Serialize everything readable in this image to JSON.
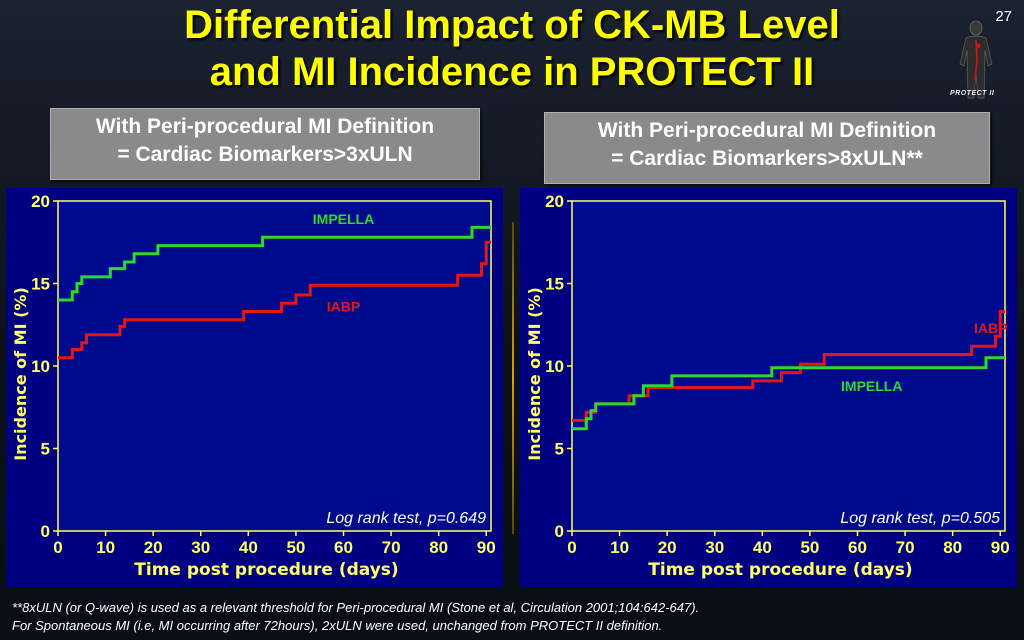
{
  "slide": {
    "title_line1": "Differential Impact of CK-MB Level",
    "title_line2": "and MI Incidence in PROTECT II",
    "slide_number": "27",
    "logo_text": "PROTECT II"
  },
  "boxes": [
    {
      "line1": "With Peri-procedural MI Definition",
      "line2": "= Cardiac Biomarkers>3xULN"
    },
    {
      "line1": "With Peri-procedural MI Definition",
      "line2": "= Cardiac Biomarkers>8xULN**"
    }
  ],
  "footnote": {
    "line1": "**8xULN  (or Q-wave) is used as a relevant threshold for Peri-procedural MI (Stone et al, Circulation 2001;104:642-647).",
    "line2": "For Spontaneous MI (i.e, MI occurring after 72hours), 2xULN were used, unchanged from PROTECT II definition."
  },
  "colors": {
    "panel_bg": "#000080",
    "plot_bg": "#000a8c",
    "axis_text": "#ffff66",
    "impella": "#2ed82e",
    "iabp": "#e01818",
    "title": "#ffff00"
  },
  "chart_data": [
    {
      "type": "line",
      "step": true,
      "xlabel": "Time post procedure (days)",
      "ylabel": "Incidence of MI (%)",
      "xlim": [
        0,
        91
      ],
      "ylim": [
        0,
        20
      ],
      "x_ticks": [
        0,
        10,
        20,
        30,
        40,
        50,
        60,
        70,
        80,
        90
      ],
      "y_ticks": [
        0,
        5,
        10,
        15,
        20
      ],
      "grid": false,
      "annotation": "Log rank test, p=0.649",
      "series": [
        {
          "name": "IMPELLA",
          "color": "#2ed82e",
          "label_at": [
            60,
            18.6
          ],
          "points": [
            [
              0,
              14.0
            ],
            [
              3,
              14.0
            ],
            [
              3,
              14.5
            ],
            [
              4,
              14.5
            ],
            [
              4,
              15.0
            ],
            [
              5,
              15.0
            ],
            [
              5,
              15.4
            ],
            [
              11,
              15.4
            ],
            [
              11,
              15.9
            ],
            [
              14,
              15.9
            ],
            [
              14,
              16.3
            ],
            [
              16,
              16.3
            ],
            [
              16,
              16.8
            ],
            [
              21,
              16.8
            ],
            [
              21,
              17.3
            ],
            [
              43,
              17.3
            ],
            [
              43,
              17.8
            ],
            [
              87,
              17.8
            ],
            [
              87,
              18.4
            ],
            [
              91,
              18.4
            ]
          ]
        },
        {
          "name": "IABP",
          "color": "#e01818",
          "label_at": [
            60,
            13.3
          ],
          "points": [
            [
              0,
              10.5
            ],
            [
              3,
              10.5
            ],
            [
              3,
              11.0
            ],
            [
              5,
              11.0
            ],
            [
              5,
              11.4
            ],
            [
              6,
              11.4
            ],
            [
              6,
              11.9
            ],
            [
              13,
              11.9
            ],
            [
              13,
              12.4
            ],
            [
              14,
              12.4
            ],
            [
              14,
              12.8
            ],
            [
              39,
              12.8
            ],
            [
              39,
              13.3
            ],
            [
              47,
              13.3
            ],
            [
              47,
              13.8
            ],
            [
              50,
              13.8
            ],
            [
              50,
              14.3
            ],
            [
              53,
              14.3
            ],
            [
              53,
              14.9
            ],
            [
              84,
              14.9
            ],
            [
              84,
              15.5
            ],
            [
              89,
              15.5
            ],
            [
              89,
              16.2
            ],
            [
              90,
              16.2
            ],
            [
              90,
              17.5
            ],
            [
              91,
              17.5
            ]
          ]
        }
      ]
    },
    {
      "type": "line",
      "step": true,
      "xlabel": "Time post procedure (days)",
      "ylabel": "Incidence of MI (%)",
      "xlim": [
        0,
        91
      ],
      "ylim": [
        0,
        20
      ],
      "x_ticks": [
        0,
        10,
        20,
        30,
        40,
        50,
        60,
        70,
        80,
        90
      ],
      "y_ticks": [
        0,
        5,
        10,
        15,
        20
      ],
      "grid": false,
      "annotation": "Log rank test, p=0.505",
      "series": [
        {
          "name": "IABP",
          "color": "#e01818",
          "label_at": [
            88,
            12.0
          ],
          "points": [
            [
              0,
              6.7
            ],
            [
              3,
              6.7
            ],
            [
              3,
              7.2
            ],
            [
              5,
              7.2
            ],
            [
              5,
              7.7
            ],
            [
              12,
              7.7
            ],
            [
              12,
              8.2
            ],
            [
              16,
              8.2
            ],
            [
              16,
              8.7
            ],
            [
              38,
              8.7
            ],
            [
              38,
              9.1
            ],
            [
              44,
              9.1
            ],
            [
              44,
              9.6
            ],
            [
              48,
              9.6
            ],
            [
              48,
              10.1
            ],
            [
              53,
              10.1
            ],
            [
              53,
              10.7
            ],
            [
              84,
              10.7
            ],
            [
              84,
              11.2
            ],
            [
              89,
              11.2
            ],
            [
              89,
              11.8
            ],
            [
              90,
              11.8
            ],
            [
              90,
              13.3
            ],
            [
              91,
              13.3
            ]
          ]
        },
        {
          "name": "IMPELLA",
          "color": "#2ed82e",
          "label_at": [
            63,
            8.5
          ],
          "points": [
            [
              0,
              6.2
            ],
            [
              3,
              6.2
            ],
            [
              3,
              6.8
            ],
            [
              4,
              6.8
            ],
            [
              4,
              7.3
            ],
            [
              5,
              7.3
            ],
            [
              5,
              7.7
            ],
            [
              13,
              7.7
            ],
            [
              13,
              8.2
            ],
            [
              15,
              8.2
            ],
            [
              15,
              8.8
            ],
            [
              21,
              8.8
            ],
            [
              21,
              9.4
            ],
            [
              42,
              9.4
            ],
            [
              42,
              9.9
            ],
            [
              87,
              9.9
            ],
            [
              87,
              10.5
            ],
            [
              91,
              10.5
            ]
          ]
        }
      ]
    }
  ]
}
